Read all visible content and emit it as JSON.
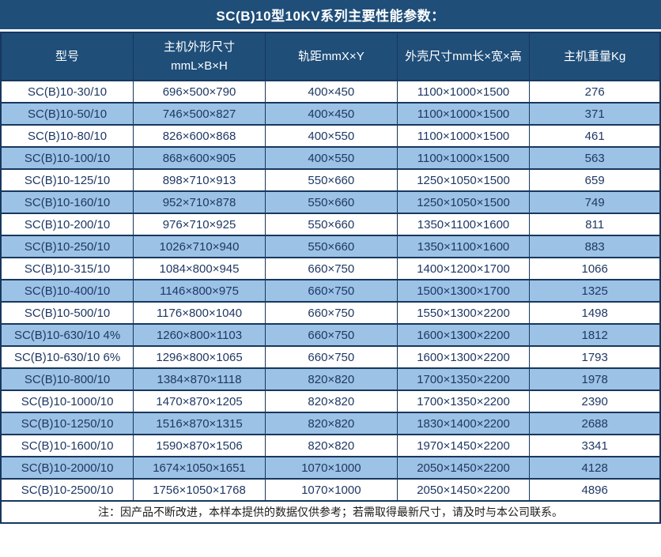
{
  "title": "SC(B)10型10KV系列主要性能参数：",
  "colors": {
    "header_bg": "#1F4E79",
    "row_bg": "#FFFFFF",
    "row_alt_bg": "#9CC2E5",
    "border": "#17375E",
    "header_text": "#FFFFFF",
    "cell_text": "#1F3864",
    "note_text": "#1A1A1A"
  },
  "table": {
    "columns": [
      {
        "label": "型号",
        "label2": ""
      },
      {
        "label": "主机外形尺寸",
        "label2": "mmL×B×H"
      },
      {
        "label": "轨距mmX×Y",
        "label2": ""
      },
      {
        "label": "外壳尺寸mm长×宽×高",
        "label2": ""
      },
      {
        "label": "主机重量Kg",
        "label2": ""
      }
    ],
    "rows": [
      [
        "SC(B)10-30/10",
        "696×500×790",
        "400×450",
        "1100×1000×1500",
        "276"
      ],
      [
        "SC(B)10-50/10",
        "746×500×827",
        "400×450",
        "1100×1000×1500",
        "371"
      ],
      [
        "SC(B)10-80/10",
        "826×600×868",
        "400×550",
        "1100×1000×1500",
        "461"
      ],
      [
        "SC(B)10-100/10",
        "868×600×905",
        "400×550",
        "1100×1000×1500",
        "563"
      ],
      [
        "SC(B)10-125/10",
        "898×710×913",
        "550×660",
        "1250×1050×1500",
        "659"
      ],
      [
        "SC(B)10-160/10",
        "952×710×878",
        "550×660",
        "1250×1050×1500",
        "749"
      ],
      [
        "SC(B)10-200/10",
        "976×710×925",
        "550×660",
        "1350×1100×1600",
        "811"
      ],
      [
        "SC(B)10-250/10",
        "1026×710×940",
        "550×660",
        "1350×1100×1600",
        "883"
      ],
      [
        "SC(B)10-315/10",
        "1084×800×945",
        "660×750",
        "1400×1200×1700",
        "1066"
      ],
      [
        "SC(B)10-400/10",
        "1146×800×975",
        "660×750",
        "1500×1300×1700",
        "1325"
      ],
      [
        "SC(B)10-500/10",
        "1176×800×1040",
        "660×750",
        "1550×1300×2200",
        "1498"
      ],
      [
        "SC(B)10-630/10 4%",
        "1260×800×1103",
        "660×750",
        "1600×1300×2200",
        "1812"
      ],
      [
        "SC(B)10-630/10 6%",
        "1296×800×1065",
        "660×750",
        "1600×1300×2200",
        "1793"
      ],
      [
        "SC(B)10-800/10",
        "1384×870×1118",
        "820×820",
        "1700×1350×2200",
        "1978"
      ],
      [
        "SC(B)10-1000/10",
        "1470×870×1205",
        "820×820",
        "1700×1350×2200",
        "2390"
      ],
      [
        "SC(B)10-1250/10",
        "1516×870×1315",
        "820×820",
        "1830×1400×2200",
        "2688"
      ],
      [
        "SC(B)10-1600/10",
        "1590×870×1506",
        "820×820",
        "1970×1450×2200",
        "3341"
      ],
      [
        "SC(B)10-2000/10",
        "1674×1050×1651",
        "1070×1000",
        "2050×1450×2200",
        "4128"
      ],
      [
        "SC(B)10-2500/10",
        "1756×1050×1768",
        "1070×1000",
        "2050×1450×2200",
        "4896"
      ]
    ]
  },
  "note": "注：因产品不断改进，本样本提供的数据仅供参考；若需取得最新尺寸，请及时与本公司联系。"
}
